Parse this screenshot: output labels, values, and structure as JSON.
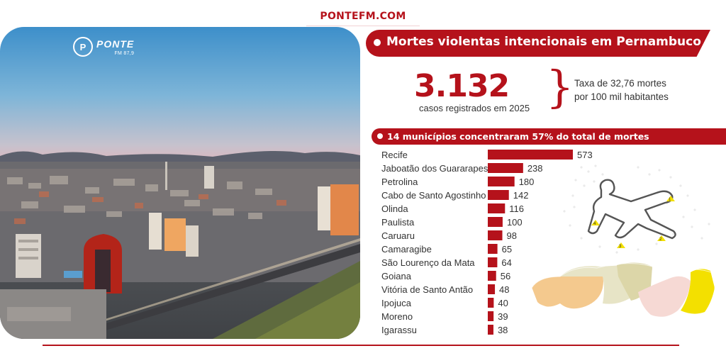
{
  "site": {
    "title": "PONTEFM.COM"
  },
  "logo": {
    "name": "PONTE",
    "frequency": "FM 87,9",
    "mark": "P"
  },
  "header": {
    "title": "Mortes violentas intencionais em Pernambuco"
  },
  "summary": {
    "total": "3.132",
    "caption": "casos registrados em 2025",
    "rate_line1": "Taxa de 32,76 mortes",
    "rate_line2": "por 100 mil habitantes"
  },
  "subheader": {
    "title": "14 municípios concentraram 57% do total de mortes"
  },
  "colors": {
    "accent": "#b5121b",
    "marker": "#f3e000"
  },
  "icons": {
    "photo": "city-photo",
    "outline": "body-outline-icon",
    "map": "pernambuco-map"
  },
  "chart_data": {
    "type": "bar",
    "orientation": "horizontal",
    "categories": [
      "Recife",
      "Jaboatão dos Guararapes",
      "Petrolina",
      "Cabo de Santo Agostinho",
      "Olinda",
      "Paulista",
      "Caruaru",
      "Camaragibe",
      "São Lourenço da Mata",
      "Goiana",
      "Vitória de Santo Antão",
      "Ipojuca",
      "Moreno",
      "Igarassu"
    ],
    "values": [
      573,
      238,
      180,
      142,
      116,
      100,
      98,
      65,
      64,
      56,
      48,
      40,
      39,
      38
    ],
    "labels": [
      "573",
      "238",
      "180",
      "142",
      "116",
      "100",
      "98",
      "65",
      "64",
      "56",
      "48",
      "40",
      "39",
      "38"
    ],
    "bar_color": "#b5121b"
  }
}
